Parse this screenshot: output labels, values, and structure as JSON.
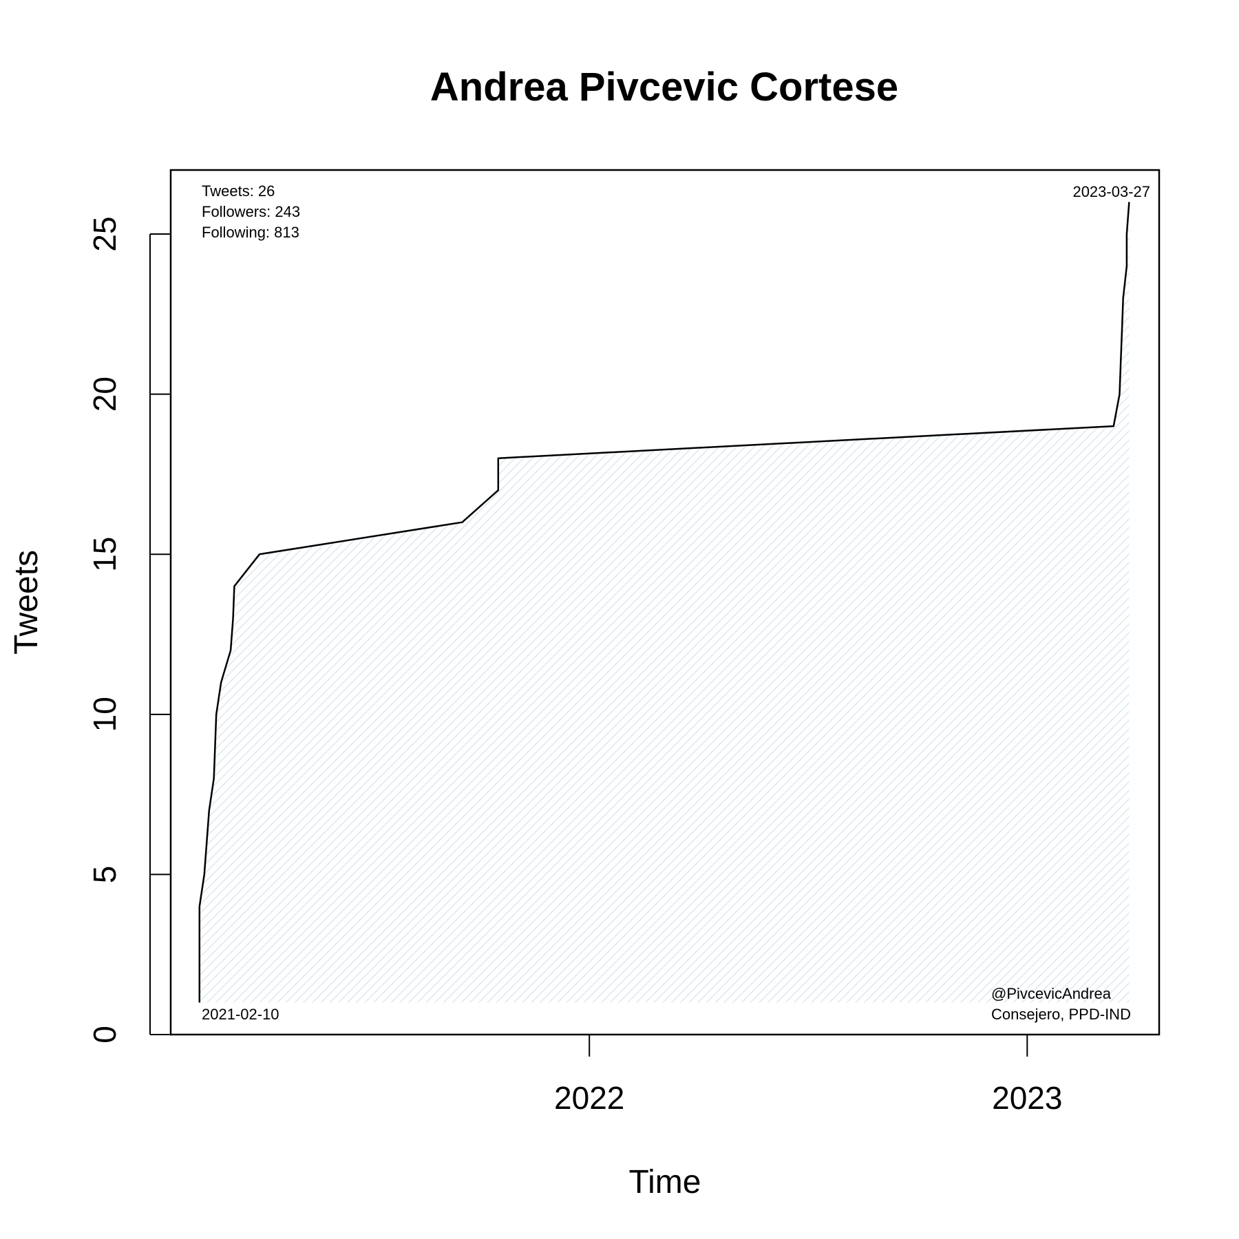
{
  "colors": {
    "line": "#000000",
    "fill_hatch": "#dbe8f0",
    "background": "#ffffff"
  },
  "chart_data": {
    "type": "area",
    "title": "Andrea Pivcevic Cortese",
    "xlabel": "Time",
    "ylabel": "Tweets",
    "ylim": [
      0,
      27
    ],
    "xlim": [
      "2021-01-17",
      "2023-04-21"
    ],
    "yticks": [
      0,
      5,
      10,
      15,
      20,
      25
    ],
    "xticks": [
      {
        "date": "2022-01-01",
        "label": "2022"
      },
      {
        "date": "2023-01-01",
        "label": "2023"
      }
    ],
    "grid": false,
    "series": [
      {
        "points": [
          [
            "2021-02-10",
            1
          ],
          [
            "2021-02-10",
            4
          ],
          [
            "2021-02-14",
            5
          ],
          [
            "2021-02-18",
            7
          ],
          [
            "2021-02-22",
            8
          ],
          [
            "2021-02-24",
            10
          ],
          [
            "2021-02-28",
            11
          ],
          [
            "2021-03-08",
            12
          ],
          [
            "2021-03-10",
            13
          ],
          [
            "2021-03-11",
            14
          ],
          [
            "2021-04-01",
            15
          ],
          [
            "2021-09-17",
            16
          ],
          [
            "2021-10-17",
            17
          ],
          [
            "2021-10-17",
            18
          ],
          [
            "2023-03-14",
            19
          ],
          [
            "2023-03-19",
            20
          ],
          [
            "2023-03-20",
            21
          ],
          [
            "2023-03-21",
            22
          ],
          [
            "2023-03-22",
            23
          ],
          [
            "2023-03-25",
            24
          ],
          [
            "2023-03-25",
            25
          ],
          [
            "2023-03-27",
            26
          ]
        ]
      }
    ],
    "annotations": {
      "stats": [
        "Tweets: 26",
        "Followers: 243",
        "Following: 813"
      ],
      "start_date": "2021-02-10",
      "end_date": "2023-03-27",
      "handle": "@PivcevicAndrea",
      "role": "Consejero, PPD-IND"
    }
  }
}
